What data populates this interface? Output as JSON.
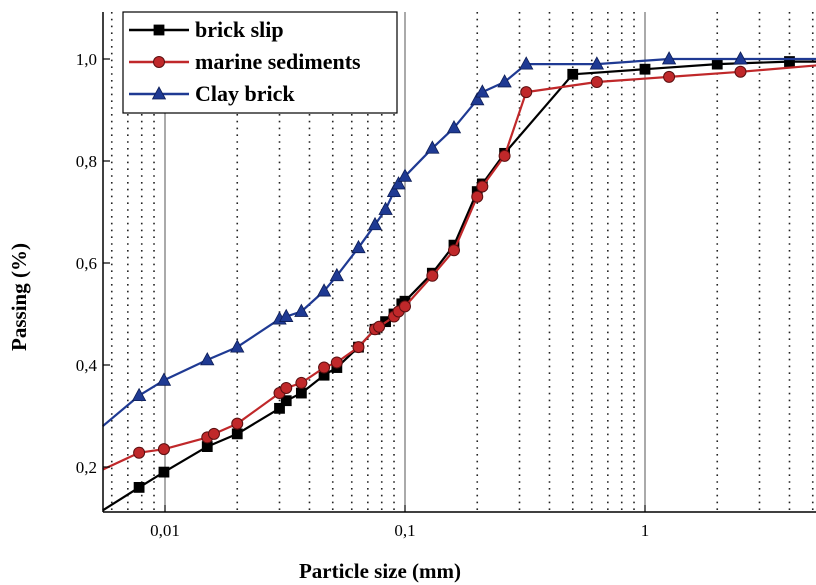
{
  "chart_data": {
    "type": "line",
    "xlabel": "Particle size (mm)",
    "ylabel": "Passing (%)",
    "xscale": "log",
    "xlim": [
      0.0055,
      6.0
    ],
    "ylim": [
      0.1,
      1.1
    ],
    "x_tick_values": [
      0.01,
      0.1,
      1
    ],
    "x_tick_labels": [
      "0,01",
      "0,1",
      "1"
    ],
    "y_tick_values": [
      0.2,
      0.4,
      0.6,
      0.8,
      1.0
    ],
    "y_tick_labels": [
      "0,2",
      "0,4",
      "0,6",
      "0,8",
      "1,0"
    ],
    "grid": "dotted vertical minor lines and solid vertical decade lines",
    "legend_position": "top-left",
    "series": [
      {
        "name": "brick slip",
        "color": "#000000",
        "marker": "square",
        "x": [
          0.0055,
          0.0078,
          0.0099,
          0.015,
          0.02,
          0.03,
          0.032,
          0.037,
          0.046,
          0.052,
          0.064,
          0.075,
          0.083,
          0.09,
          0.097,
          0.1,
          0.13,
          0.16,
          0.2,
          0.21,
          0.26,
          0.5,
          1.0,
          2.0,
          4.0,
          6.0
        ],
        "y": [
          0.115,
          0.16,
          0.19,
          0.24,
          0.265,
          0.315,
          0.33,
          0.345,
          0.38,
          0.395,
          0.435,
          0.47,
          0.485,
          0.5,
          0.52,
          0.525,
          0.58,
          0.635,
          0.74,
          0.755,
          0.815,
          0.97,
          0.98,
          0.99,
          0.995,
          0.995
        ]
      },
      {
        "name": "marine sediments",
        "color": "#c0282a",
        "marker": "circle",
        "x": [
          0.0055,
          0.0078,
          0.0099,
          0.015,
          0.016,
          0.02,
          0.03,
          0.032,
          0.037,
          0.046,
          0.052,
          0.064,
          0.075,
          0.078,
          0.09,
          0.094,
          0.1,
          0.13,
          0.16,
          0.2,
          0.21,
          0.26,
          0.32,
          0.63,
          1.26,
          2.5,
          6.0
        ],
        "y": [
          0.195,
          0.228,
          0.235,
          0.258,
          0.265,
          0.285,
          0.345,
          0.355,
          0.365,
          0.395,
          0.405,
          0.435,
          0.47,
          0.475,
          0.495,
          0.505,
          0.515,
          0.575,
          0.625,
          0.73,
          0.75,
          0.81,
          0.935,
          0.955,
          0.965,
          0.975,
          0.99
        ]
      },
      {
        "name": "Clay brick",
        "color": "#1f3a93",
        "marker": "triangle",
        "x": [
          0.0055,
          0.0078,
          0.0099,
          0.015,
          0.02,
          0.03,
          0.032,
          0.037,
          0.046,
          0.052,
          0.064,
          0.075,
          0.083,
          0.09,
          0.094,
          0.1,
          0.13,
          0.16,
          0.2,
          0.21,
          0.26,
          0.32,
          0.63,
          1.26,
          2.5,
          6.0
        ],
        "y": [
          0.28,
          0.34,
          0.37,
          0.41,
          0.435,
          0.49,
          0.495,
          0.505,
          0.545,
          0.575,
          0.63,
          0.675,
          0.705,
          0.74,
          0.755,
          0.77,
          0.825,
          0.865,
          0.92,
          0.935,
          0.955,
          0.99,
          0.99,
          1.0,
          1.0,
          1.0
        ]
      }
    ]
  }
}
